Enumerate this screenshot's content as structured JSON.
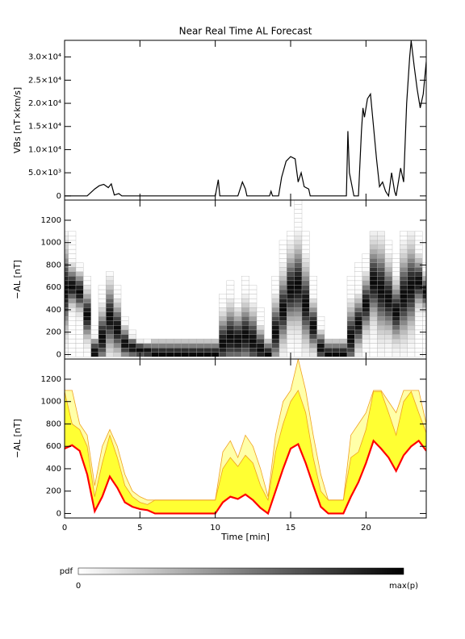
{
  "chart_data": [
    {
      "type": "line",
      "title": "Near Real Time AL Forecast",
      "ylabel": "VBs [nT×km/s]",
      "xlim": [
        0,
        24
      ],
      "xticks": [
        0,
        5,
        10,
        15,
        20
      ],
      "ylim": [
        -900,
        33600
      ],
      "yticks": [
        0,
        {
          "value": 5000,
          "label": "5.0×10³"
        },
        {
          "value": 10000,
          "label": "1.0×10⁴"
        },
        {
          "value": 15000,
          "label": "1.5×10⁴"
        },
        {
          "value": 20000,
          "label": "2.0×10⁴"
        },
        {
          "value": 25000,
          "label": "2.5×10⁴"
        },
        {
          "value": 30000,
          "label": "3.0×10⁴"
        }
      ],
      "series": [
        {
          "color": "#000000",
          "x": [
            0,
            1.5,
            2,
            2.3,
            2.6,
            2.9,
            3.1,
            3.3,
            3.6,
            3.8,
            10,
            10.2,
            10.3,
            11.5,
            11.7,
            11.8,
            12,
            12.1,
            13.6,
            13.7,
            13.8,
            14.2,
            14.4,
            14.7,
            15,
            15.3,
            15.5,
            15.7,
            15.9,
            16.2,
            16.3,
            18.7,
            18.8,
            18.9,
            19.2,
            19.5,
            19.7,
            19.8,
            19.9,
            20.1,
            20.3,
            20.5,
            20.7,
            20.9,
            21.1,
            21.3,
            21.5,
            21.7,
            21.9,
            22,
            22.3,
            22.5,
            22.7,
            22.9,
            23,
            23.2,
            23.4,
            23.6,
            23.8,
            24
          ],
          "values": [
            0,
            0,
            1500,
            2200,
            2500,
            1800,
            2600,
            200,
            500,
            0,
            0,
            3500,
            0,
            0,
            2000,
            3000,
            1500,
            0,
            0,
            1000,
            0,
            0,
            4000,
            7500,
            8500,
            8000,
            3000,
            5000,
            2000,
            1500,
            0,
            0,
            14000,
            5000,
            0,
            0,
            14000,
            19000,
            17000,
            21000,
            22000,
            15000,
            8000,
            2000,
            3000,
            1000,
            0,
            5000,
            1000,
            0,
            6000,
            3000,
            20000,
            30000,
            33500,
            28000,
            23000,
            19000,
            22000,
            29000
          ]
        }
      ]
    },
    {
      "type": "heatmap",
      "ylabel": "−AL [nT]",
      "xlim": [
        0,
        24
      ],
      "xticks": [
        0,
        5,
        10,
        15,
        20
      ],
      "ylim": [
        -40,
        1380
      ],
      "yticks": [
        0,
        200,
        400,
        600,
        800,
        1000,
        1200
      ],
      "x": [
        0,
        0.5,
        1,
        1.5,
        2,
        2.5,
        3,
        3.5,
        4,
        4.5,
        5,
        5.5,
        6,
        6.5,
        7,
        7.5,
        8,
        8.5,
        9,
        9.5,
        10,
        10.5,
        11,
        11.5,
        12,
        12.5,
        13,
        13.5,
        14,
        14.5,
        15,
        15.5,
        16,
        16.5,
        17,
        17.5,
        18,
        18.5,
        19,
        19.5,
        20,
        20.5,
        21,
        21.5,
        22,
        22.5,
        23,
        23.5,
        24
      ],
      "median": [
        580,
        610,
        560,
        350,
        20,
        150,
        330,
        230,
        100,
        60,
        40,
        30,
        0,
        0,
        0,
        0,
        0,
        0,
        0,
        0,
        0,
        100,
        150,
        130,
        170,
        120,
        50,
        0,
        200,
        400,
        580,
        620,
        450,
        250,
        60,
        0,
        0,
        0,
        150,
        280,
        450,
        650,
        580,
        500,
        380,
        520,
        600,
        650,
        560
      ],
      "upper": [
        1090,
        800,
        750,
        600,
        150,
        450,
        700,
        500,
        250,
        150,
        100,
        80,
        120,
        120,
        120,
        120,
        120,
        120,
        120,
        120,
        120,
        400,
        500,
        420,
        520,
        450,
        250,
        120,
        550,
        800,
        1000,
        1100,
        900,
        500,
        200,
        120,
        120,
        120,
        500,
        550,
        750,
        1090,
        1090,
        900,
        700,
        1000,
        1090,
        900,
        720
      ],
      "max": [
        1100,
        1100,
        800,
        700,
        250,
        600,
        750,
        600,
        350,
        200,
        150,
        120,
        120,
        120,
        120,
        120,
        120,
        120,
        120,
        120,
        120,
        550,
        650,
        500,
        700,
        600,
        400,
        150,
        700,
        1000,
        1100,
        1380,
        1100,
        700,
        350,
        120,
        120,
        120,
        700,
        800,
        900,
        1100,
        1100,
        1000,
        900,
        1100,
        1100,
        1100,
        800
      ],
      "colorbar": {
        "label": "pdf",
        "min_label": "0",
        "max_label": "max(p)"
      }
    },
    {
      "type": "band",
      "ylabel": "−AL [nT]",
      "xlabel": "Time [min]",
      "xlim": [
        0,
        24
      ],
      "xticks": [
        0,
        5,
        10,
        15,
        20
      ],
      "ylim": [
        -40,
        1380
      ],
      "yticks": [
        0,
        200,
        400,
        600,
        800,
        1000,
        1200
      ],
      "colors": {
        "median": "#ff0000",
        "upper": "#ffff33",
        "max": "#ffffa8",
        "edge": "#f0a020"
      },
      "x": [
        0,
        0.5,
        1,
        1.5,
        2,
        2.5,
        3,
        3.5,
        4,
        4.5,
        5,
        5.5,
        6,
        6.5,
        7,
        7.5,
        8,
        8.5,
        9,
        9.5,
        10,
        10.5,
        11,
        11.5,
        12,
        12.5,
        13,
        13.5,
        14,
        14.5,
        15,
        15.5,
        16,
        16.5,
        17,
        17.5,
        18,
        18.5,
        19,
        19.5,
        20,
        20.5,
        21,
        21.5,
        22,
        22.5,
        23,
        23.5,
        24
      ],
      "median": [
        580,
        610,
        560,
        350,
        20,
        150,
        330,
        230,
        100,
        60,
        40,
        30,
        0,
        0,
        0,
        0,
        0,
        0,
        0,
        0,
        0,
        100,
        150,
        130,
        170,
        120,
        50,
        0,
        200,
        400,
        580,
        620,
        450,
        250,
        60,
        0,
        0,
        0,
        150,
        280,
        450,
        650,
        580,
        500,
        380,
        520,
        600,
        650,
        560
      ],
      "upper": [
        1090,
        800,
        750,
        600,
        150,
        450,
        700,
        500,
        250,
        150,
        100,
        80,
        120,
        120,
        120,
        120,
        120,
        120,
        120,
        120,
        120,
        400,
        500,
        420,
        520,
        450,
        250,
        120,
        550,
        800,
        1000,
        1100,
        900,
        500,
        200,
        120,
        120,
        120,
        500,
        550,
        750,
        1090,
        1090,
        900,
        700,
        1000,
        1090,
        900,
        720
      ],
      "max": [
        1100,
        1100,
        800,
        700,
        250,
        600,
        750,
        600,
        350,
        200,
        150,
        120,
        120,
        120,
        120,
        120,
        120,
        120,
        120,
        120,
        120,
        550,
        650,
        500,
        700,
        600,
        400,
        150,
        700,
        1000,
        1100,
        1380,
        1100,
        700,
        350,
        120,
        120,
        120,
        700,
        800,
        900,
        1100,
        1100,
        1000,
        900,
        1100,
        1100,
        1100,
        800
      ]
    }
  ]
}
